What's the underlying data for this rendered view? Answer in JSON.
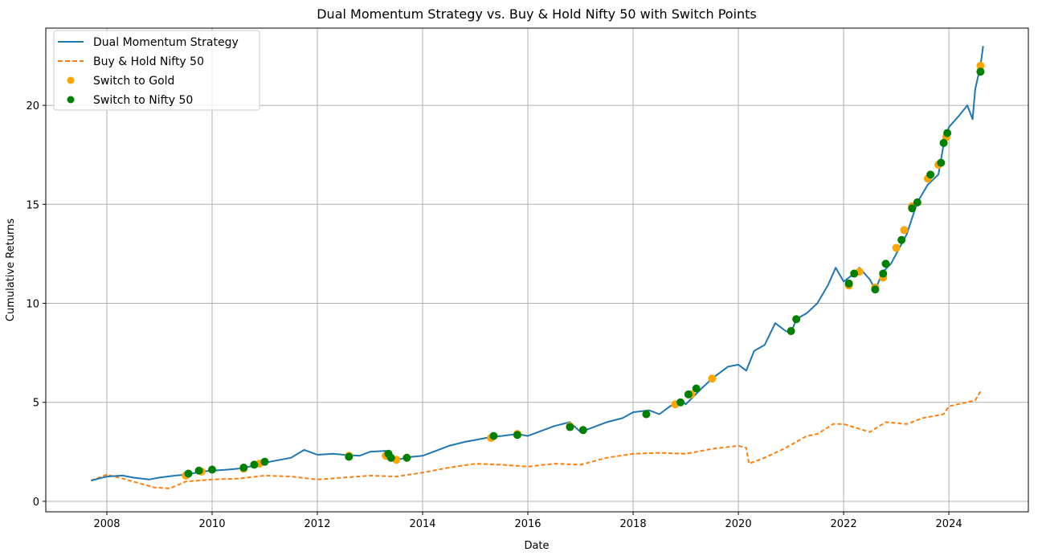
{
  "chart_data": {
    "type": "line",
    "title": "Dual Momentum Strategy vs. Buy & Hold Nifty 50 with Switch Points",
    "xlabel": "Date",
    "ylabel": "Cumulative Returns",
    "xlim": [
      2006.84,
      2025.51
    ],
    "ylim": [
      -0.53,
      23.9
    ],
    "grid": true,
    "legend_position": "top-left",
    "x_ticks": [
      2008,
      2010,
      2012,
      2014,
      2016,
      2018,
      2020,
      2022,
      2024
    ],
    "x_tick_labels": [
      "2008",
      "2010",
      "2012",
      "2014",
      "2016",
      "2018",
      "2020",
      "2022",
      "2024"
    ],
    "y_ticks": [
      0,
      5,
      10,
      15,
      20
    ],
    "y_tick_labels": [
      "0",
      "5",
      "10",
      "15",
      "20"
    ],
    "series": [
      {
        "name": "Dual Momentum Strategy",
        "style": "solid",
        "color": "#1f77b4",
        "x": [
          2007.7,
          2008.0,
          2008.3,
          2008.5,
          2008.8,
          2009.0,
          2009.3,
          2009.5,
          2009.8,
          2010.0,
          2010.3,
          2010.5,
          2010.8,
          2011.0,
          2011.3,
          2011.5,
          2011.75,
          2012.0,
          2012.3,
          2012.5,
          2012.8,
          2013.0,
          2013.3,
          2013.5,
          2013.8,
          2014.0,
          2014.3,
          2014.5,
          2014.8,
          2015.0,
          2015.3,
          2015.5,
          2015.8,
          2016.0,
          2016.3,
          2016.5,
          2016.8,
          2017.0,
          2017.3,
          2017.5,
          2017.8,
          2018.0,
          2018.3,
          2018.5,
          2018.7,
          2018.9,
          2019.0,
          2019.3,
          2019.5,
          2019.8,
          2020.0,
          2020.15,
          2020.3,
          2020.5,
          2020.7,
          2020.9,
          2021.0,
          2021.1,
          2021.3,
          2021.5,
          2021.7,
          2021.85,
          2022.0,
          2022.2,
          2022.3,
          2022.5,
          2022.6,
          2022.75,
          2022.9,
          2023.0,
          2023.2,
          2023.4,
          2023.6,
          2023.8,
          2023.9,
          2024.0,
          2024.2,
          2024.35,
          2024.45,
          2024.5,
          2024.6,
          2024.65
        ],
        "y": [
          1.05,
          1.25,
          1.3,
          1.2,
          1.1,
          1.2,
          1.3,
          1.35,
          1.5,
          1.55,
          1.6,
          1.65,
          1.8,
          1.95,
          2.1,
          2.2,
          2.6,
          2.35,
          2.4,
          2.35,
          2.3,
          2.5,
          2.55,
          2.1,
          2.25,
          2.3,
          2.6,
          2.8,
          3.0,
          3.1,
          3.25,
          3.3,
          3.4,
          3.3,
          3.6,
          3.8,
          4.0,
          3.5,
          3.8,
          4.0,
          4.2,
          4.5,
          4.6,
          4.4,
          4.8,
          5.1,
          4.9,
          5.7,
          6.2,
          6.8,
          6.9,
          6.6,
          7.6,
          7.9,
          9.0,
          8.6,
          8.5,
          9.2,
          9.5,
          10.0,
          10.9,
          11.8,
          11.1,
          11.5,
          11.8,
          11.2,
          10.7,
          11.6,
          12.0,
          12.5,
          13.5,
          15.1,
          16.0,
          16.5,
          18.0,
          18.9,
          19.5,
          20.0,
          19.3,
          20.8,
          22.0,
          23.0
        ]
      },
      {
        "name": "Buy & Hold Nifty 50",
        "style": "dashed",
        "color": "#ff7f0e",
        "x": [
          2007.7,
          2008.0,
          2008.3,
          2008.5,
          2008.9,
          2009.2,
          2009.5,
          2010.0,
          2010.5,
          2011.0,
          2011.5,
          2012.0,
          2012.5,
          2013.0,
          2013.5,
          2014.0,
          2014.5,
          2015.0,
          2015.5,
          2016.0,
          2016.5,
          2017.0,
          2017.5,
          2018.0,
          2018.5,
          2019.0,
          2019.5,
          2020.0,
          2020.15,
          2020.2,
          2020.5,
          2020.9,
          2021.3,
          2021.5,
          2021.8,
          2022.0,
          2022.5,
          2022.8,
          2023.2,
          2023.5,
          2023.9,
          2024.0,
          2024.5,
          2024.6
        ],
        "y": [
          1.05,
          1.35,
          1.15,
          1.0,
          0.7,
          0.65,
          1.0,
          1.1,
          1.15,
          1.3,
          1.25,
          1.1,
          1.2,
          1.3,
          1.25,
          1.45,
          1.7,
          1.9,
          1.85,
          1.75,
          1.9,
          1.85,
          2.2,
          2.4,
          2.45,
          2.4,
          2.65,
          2.8,
          2.7,
          1.9,
          2.2,
          2.7,
          3.3,
          3.4,
          3.9,
          3.9,
          3.5,
          4.0,
          3.9,
          4.2,
          4.4,
          4.8,
          5.1,
          5.55
        ]
      }
    ],
    "scatter": [
      {
        "name": "Switch to Gold",
        "color": "#ffa500",
        "x": [
          2009.5,
          2009.8,
          2010.6,
          2010.9,
          2012.6,
          2013.3,
          2013.5,
          2015.3,
          2015.8,
          2016.8,
          2017.05,
          2018.25,
          2018.8,
          2019.1,
          2019.5,
          2021.0,
          2022.1,
          2022.3,
          2022.6,
          2022.75,
          2023.0,
          2023.15,
          2023.3,
          2023.6,
          2023.8,
          2023.95,
          2024.6
        ],
        "y": [
          1.3,
          1.5,
          1.65,
          1.9,
          2.3,
          2.3,
          2.1,
          3.2,
          3.4,
          3.8,
          3.6,
          4.4,
          4.9,
          5.4,
          6.2,
          8.6,
          10.9,
          11.6,
          10.8,
          11.3,
          12.8,
          13.7,
          14.9,
          16.3,
          17.0,
          18.4,
          22.0
        ]
      },
      {
        "name": "Switch to Nifty 50",
        "color": "#008000",
        "x": [
          2009.55,
          2009.75,
          2010.0,
          2010.6,
          2010.8,
          2011.0,
          2012.6,
          2013.35,
          2013.4,
          2013.7,
          2015.35,
          2015.8,
          2016.8,
          2017.05,
          2018.25,
          2018.9,
          2019.05,
          2019.2,
          2021.0,
          2021.1,
          2022.1,
          2022.2,
          2022.6,
          2022.75,
          2022.8,
          2023.1,
          2023.3,
          2023.4,
          2023.65,
          2023.85,
          2023.9,
          2023.97,
          2024.6
        ],
        "y": [
          1.4,
          1.55,
          1.6,
          1.7,
          1.85,
          2.0,
          2.25,
          2.4,
          2.2,
          2.2,
          3.3,
          3.35,
          3.75,
          3.6,
          4.4,
          5.0,
          5.4,
          5.7,
          8.6,
          9.2,
          11.0,
          11.5,
          10.7,
          11.5,
          12.0,
          13.2,
          14.8,
          15.1,
          16.5,
          17.1,
          18.1,
          18.6,
          21.7
        ]
      }
    ]
  }
}
